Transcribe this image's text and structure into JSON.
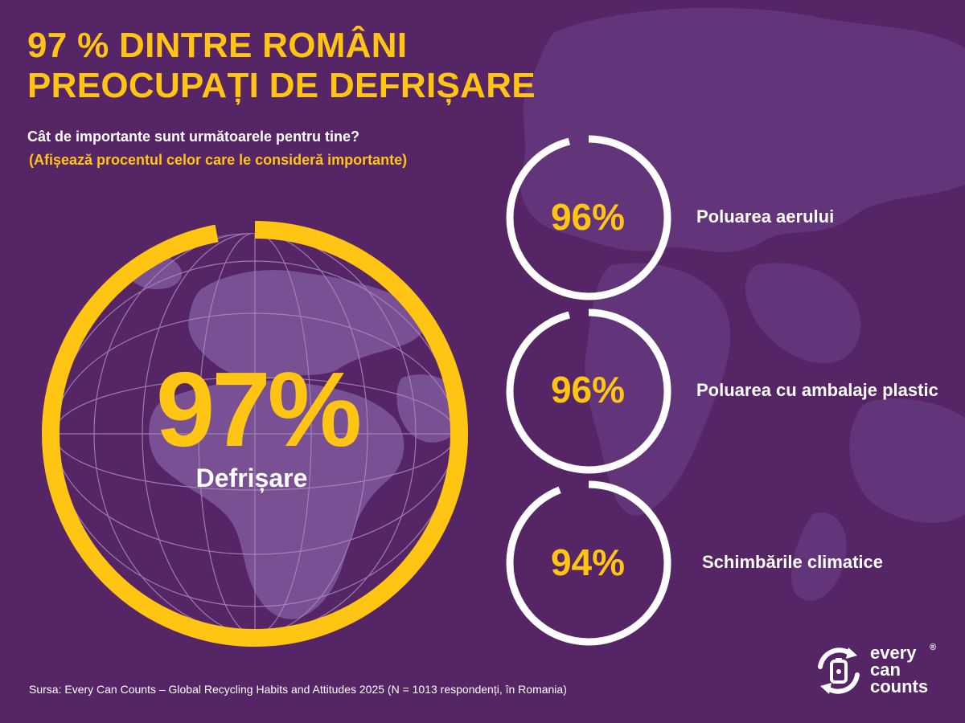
{
  "title": {
    "line1": "97 % DINTRE ROMÂNI",
    "line2": "PREOCUPAȚI DE DEFRIȘARE"
  },
  "question": "Cât de importante sunt următoarele pentru tine?",
  "question_note": "(Afișează procentul celor care le consideră importante)",
  "source": "Sursa: Every Can Counts – Global Recycling Habits and Attitudes 2025 (N = 1013 respondenți, în Romania)",
  "logo": {
    "line1": "every",
    "line2": "can",
    "line3": "counts",
    "registered": "®",
    "icon": "recycling-can-icon"
  },
  "colors": {
    "background": "#552566",
    "accent": "#FFC512",
    "ring": "#FFFFFF",
    "map": "#6E4585"
  },
  "chart_data": {
    "type": "pie",
    "unit": "%",
    "categories": [
      "Defrișare",
      "Poluarea aerului",
      "Poluarea cu ambalaje plastic",
      "Schimbările climatice"
    ],
    "values": [
      97,
      96,
      96,
      94
    ],
    "value_labels": [
      "97%",
      "96%",
      "96%",
      "94%"
    ],
    "title": "97 % DINTRE ROMÂNI PREOCUPAȚI DE DEFRIȘARE",
    "subtitle": "Cât de importante sunt următoarele pentru tine?",
    "range": [
      0,
      100
    ]
  }
}
